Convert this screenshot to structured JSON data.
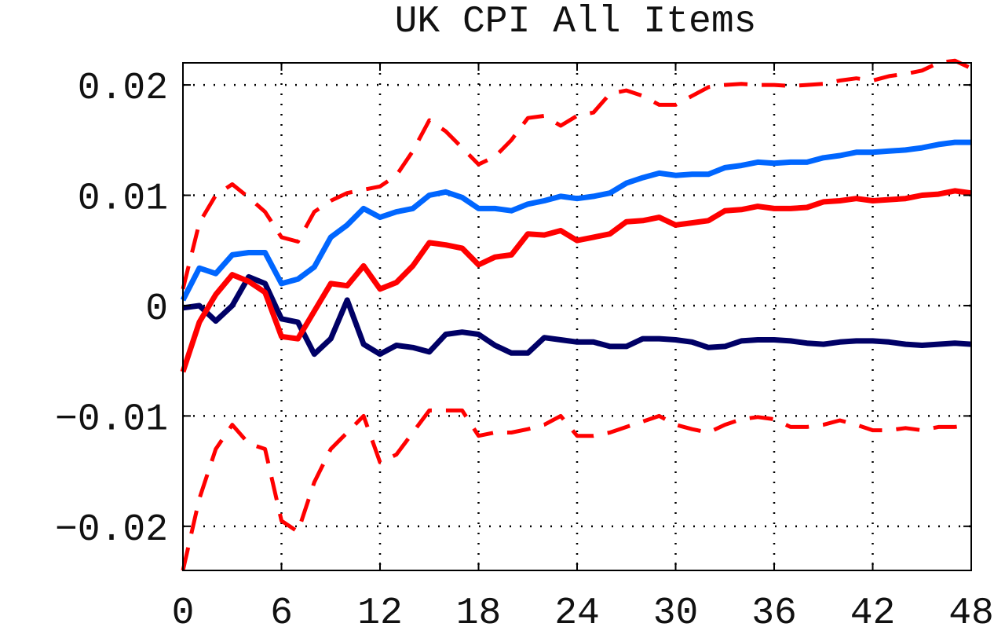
{
  "chart_data": {
    "type": "line",
    "title": "UK CPI All Items",
    "xlabel": "",
    "ylabel": "",
    "xlim": [
      0,
      48
    ],
    "ylim": [
      -0.024,
      0.022
    ],
    "x_ticks": [
      0,
      6,
      12,
      18,
      24,
      30,
      36,
      42,
      48
    ],
    "y_ticks": [
      -0.02,
      -0.01,
      0,
      0.01,
      0.02
    ],
    "x_tick_labels": [
      "0",
      "6",
      "12",
      "18",
      "24",
      "30",
      "36",
      "42",
      "48"
    ],
    "y_tick_labels": [
      "−0.02",
      "−0.01",
      "0",
      "0.01",
      "0.02"
    ],
    "grid": true,
    "grid_style": "dotted",
    "legend": "none",
    "x": [
      0,
      1,
      2,
      3,
      4,
      5,
      6,
      7,
      8,
      9,
      10,
      11,
      12,
      13,
      14,
      15,
      16,
      17,
      18,
      19,
      20,
      21,
      22,
      23,
      24,
      25,
      26,
      27,
      28,
      29,
      30,
      31,
      32,
      33,
      34,
      35,
      36,
      37,
      38,
      39,
      40,
      41,
      42,
      43,
      44,
      45,
      46,
      47,
      48
    ],
    "series": [
      {
        "color": "#ff0000",
        "style": "dashed",
        "values": [
          0.0015,
          0.0075,
          0.01,
          0.011,
          0.0098,
          0.0085,
          0.0062,
          0.0058,
          0.0085,
          0.0095,
          0.0102,
          0.0105,
          0.0108,
          0.0118,
          0.014,
          0.0168,
          0.0158,
          0.0143,
          0.0128,
          0.0135,
          0.015,
          0.017,
          0.0172,
          0.0163,
          0.0172,
          0.0175,
          0.0192,
          0.0195,
          0.019,
          0.0182,
          0.0182,
          0.019,
          0.0198,
          0.02,
          0.0201,
          0.02,
          0.02,
          0.0199,
          0.02,
          0.0201,
          0.0204,
          0.0206,
          0.0204,
          0.0208,
          0.021,
          0.0213,
          0.022,
          0.0222,
          0.0215
        ]
      },
      {
        "color": "#ff0000",
        "style": "dashed",
        "values": [
          -0.024,
          -0.0175,
          -0.013,
          -0.0108,
          -0.0125,
          -0.013,
          -0.0195,
          -0.0205,
          -0.016,
          -0.013,
          -0.0115,
          -0.01,
          -0.0142,
          -0.0135,
          -0.0115,
          -0.0095,
          -0.0095,
          -0.0095,
          -0.0118,
          -0.0115,
          -0.0115,
          -0.0112,
          -0.0108,
          -0.01,
          -0.0118,
          -0.0118,
          -0.0115,
          -0.011,
          -0.0105,
          -0.01,
          -0.0108,
          -0.0112,
          -0.0115,
          -0.0108,
          -0.0103,
          -0.0101,
          -0.0103,
          -0.011,
          -0.011,
          -0.0108,
          -0.0104,
          -0.0108,
          -0.0113,
          -0.0113,
          -0.0111,
          -0.0113,
          -0.011,
          -0.011,
          -0.0108
        ]
      },
      {
        "color": "#000066",
        "style": "solid",
        "values": [
          -0.0002,
          0.0,
          -0.0014,
          0.0,
          0.0026,
          0.002,
          -0.0012,
          -0.0015,
          -0.0044,
          -0.003,
          0.0005,
          -0.0035,
          -0.0044,
          -0.0036,
          -0.0038,
          -0.0042,
          -0.0026,
          -0.0024,
          -0.0026,
          -0.0036,
          -0.0043,
          -0.0043,
          -0.0029,
          -0.0031,
          -0.0033,
          -0.0033,
          -0.0037,
          -0.0037,
          -0.003,
          -0.003,
          -0.0031,
          -0.0033,
          -0.0038,
          -0.0037,
          -0.0032,
          -0.0031,
          -0.0031,
          -0.0032,
          -0.0034,
          -0.0035,
          -0.0033,
          -0.0032,
          -0.0032,
          -0.0033,
          -0.0035,
          -0.0036,
          -0.0035,
          -0.0034,
          -0.0035
        ]
      },
      {
        "color": "#ff0000",
        "style": "solid",
        "values": [
          -0.006,
          -0.0015,
          0.001,
          0.0028,
          0.0022,
          0.0012,
          -0.0028,
          -0.003,
          -0.0005,
          0.002,
          0.0018,
          0.0036,
          0.0015,
          0.0021,
          0.0036,
          0.0057,
          0.0055,
          0.0052,
          0.0037,
          0.0044,
          0.0046,
          0.0065,
          0.0064,
          0.0068,
          0.0059,
          0.0062,
          0.0065,
          0.0076,
          0.0077,
          0.008,
          0.0073,
          0.0075,
          0.0077,
          0.0086,
          0.0087,
          0.009,
          0.0088,
          0.0088,
          0.0089,
          0.0094,
          0.0095,
          0.0097,
          0.0095,
          0.0096,
          0.0097,
          0.01,
          0.0101,
          0.0104,
          0.0102
        ]
      },
      {
        "color": "#0066ff",
        "style": "solid",
        "values": [
          0.0005,
          0.0034,
          0.0029,
          0.0046,
          0.0048,
          0.0048,
          0.002,
          0.0024,
          0.0035,
          0.0062,
          0.0073,
          0.0088,
          0.008,
          0.0085,
          0.0088,
          0.01,
          0.0103,
          0.0098,
          0.0088,
          0.0088,
          0.0086,
          0.0092,
          0.0095,
          0.0099,
          0.0097,
          0.0099,
          0.0102,
          0.0111,
          0.0116,
          0.012,
          0.0118,
          0.0119,
          0.0119,
          0.0125,
          0.0127,
          0.013,
          0.0129,
          0.013,
          0.013,
          0.0134,
          0.0136,
          0.0139,
          0.0139,
          0.014,
          0.0141,
          0.0143,
          0.0146,
          0.0148,
          0.0148
        ]
      }
    ]
  }
}
